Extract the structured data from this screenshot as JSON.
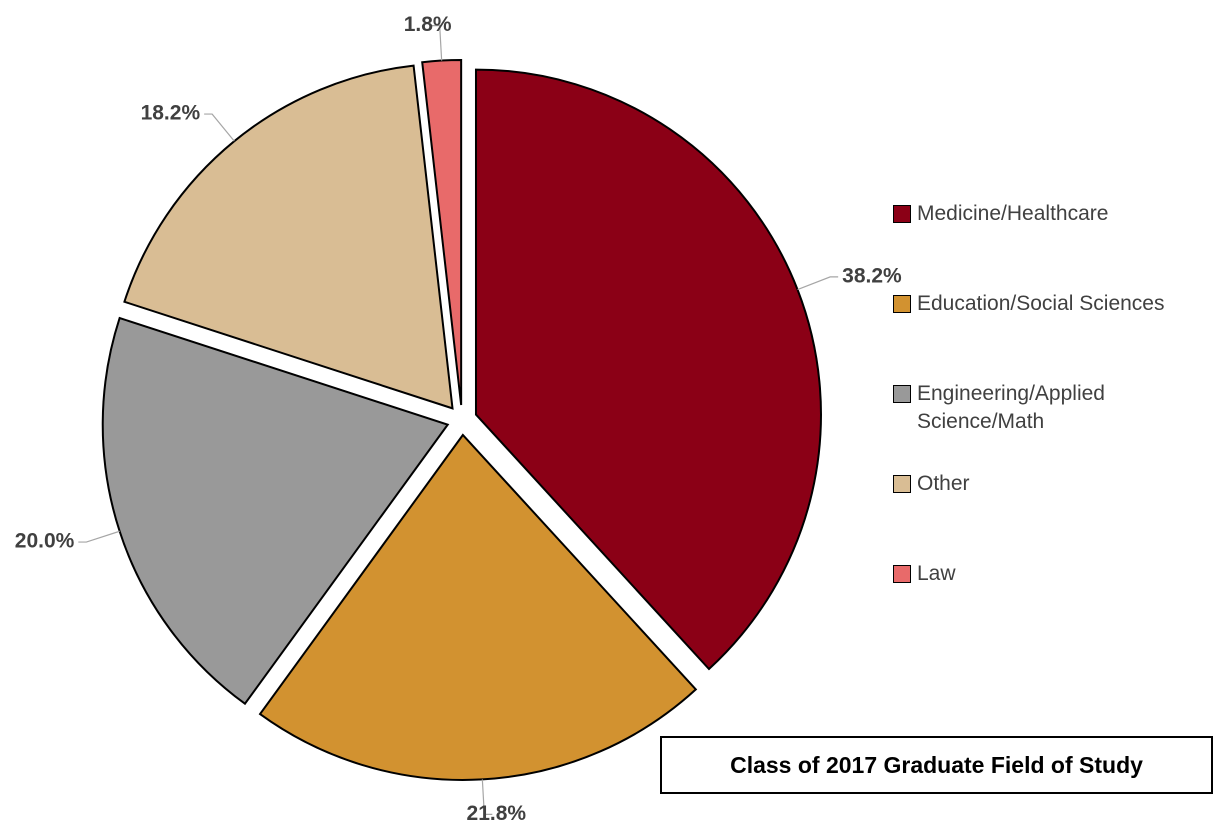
{
  "chart_data": {
    "type": "pie",
    "title": "Class of 2017 Graduate Field of Study",
    "categories": [
      "Medicine/Healthcare",
      "Education/Social Sciences",
      "Engineering/Applied Science/Math",
      "Other",
      "Law"
    ],
    "values": [
      38.2,
      21.8,
      20.0,
      18.2,
      1.8
    ],
    "value_labels": [
      "38.2%",
      "21.8%",
      "20.0%",
      "18.2%",
      "1.8%"
    ],
    "colors": [
      "#8b0016",
      "#d29230",
      "#999999",
      "#d9bd94",
      "#e86a6a"
    ],
    "legend": "right"
  }
}
